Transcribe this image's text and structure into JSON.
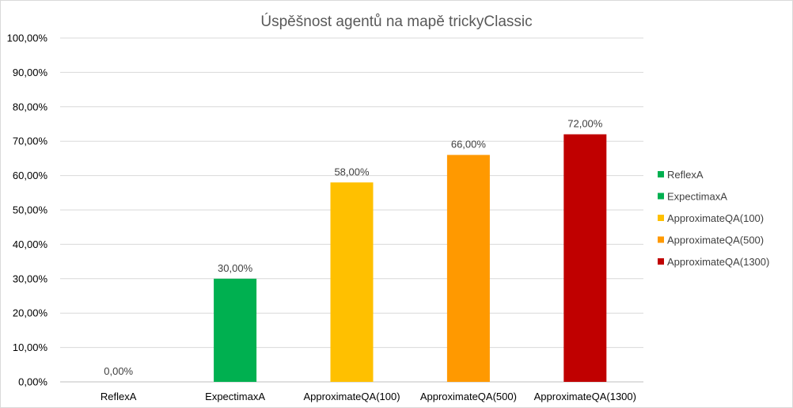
{
  "chart_data": {
    "type": "bar",
    "title": "Úspěšnost  agentů na mapě trickyClassic",
    "xlabel": "",
    "ylabel": "",
    "categories": [
      "ReflexA",
      "ExpectimaxA",
      "ApproximateQA(100)",
      "ApproximateQA(500)",
      "ApproximateQA(1300)"
    ],
    "values": [
      0,
      30,
      58,
      66,
      72
    ],
    "data_labels": [
      "0,00%",
      "30,00%",
      "58,00%",
      "66,00%",
      "72,00%"
    ],
    "colors": [
      "#00b050",
      "#00b050",
      "#ffc000",
      "#ff9900",
      "#c00000"
    ],
    "legend_colors": [
      "#00b050",
      "#00b050",
      "#ffc000",
      "#ff9900",
      "#c00000"
    ],
    "ylim": [
      0,
      100
    ],
    "yticks": [
      0,
      10,
      20,
      30,
      40,
      50,
      60,
      70,
      80,
      90,
      100
    ],
    "ytick_labels": [
      "0,00%",
      "10,00%",
      "20,00%",
      "30,00%",
      "40,00%",
      "50,00%",
      "60,00%",
      "70,00%",
      "80,00%",
      "90,00%",
      "100,00%"
    ],
    "legend": {
      "position": "right",
      "entries": [
        "ReflexA",
        "ExpectimaxA",
        "ApproximateQA(100)",
        "ApproximateQA(500)",
        "ApproximateQA(1300)"
      ]
    },
    "grid": true
  }
}
